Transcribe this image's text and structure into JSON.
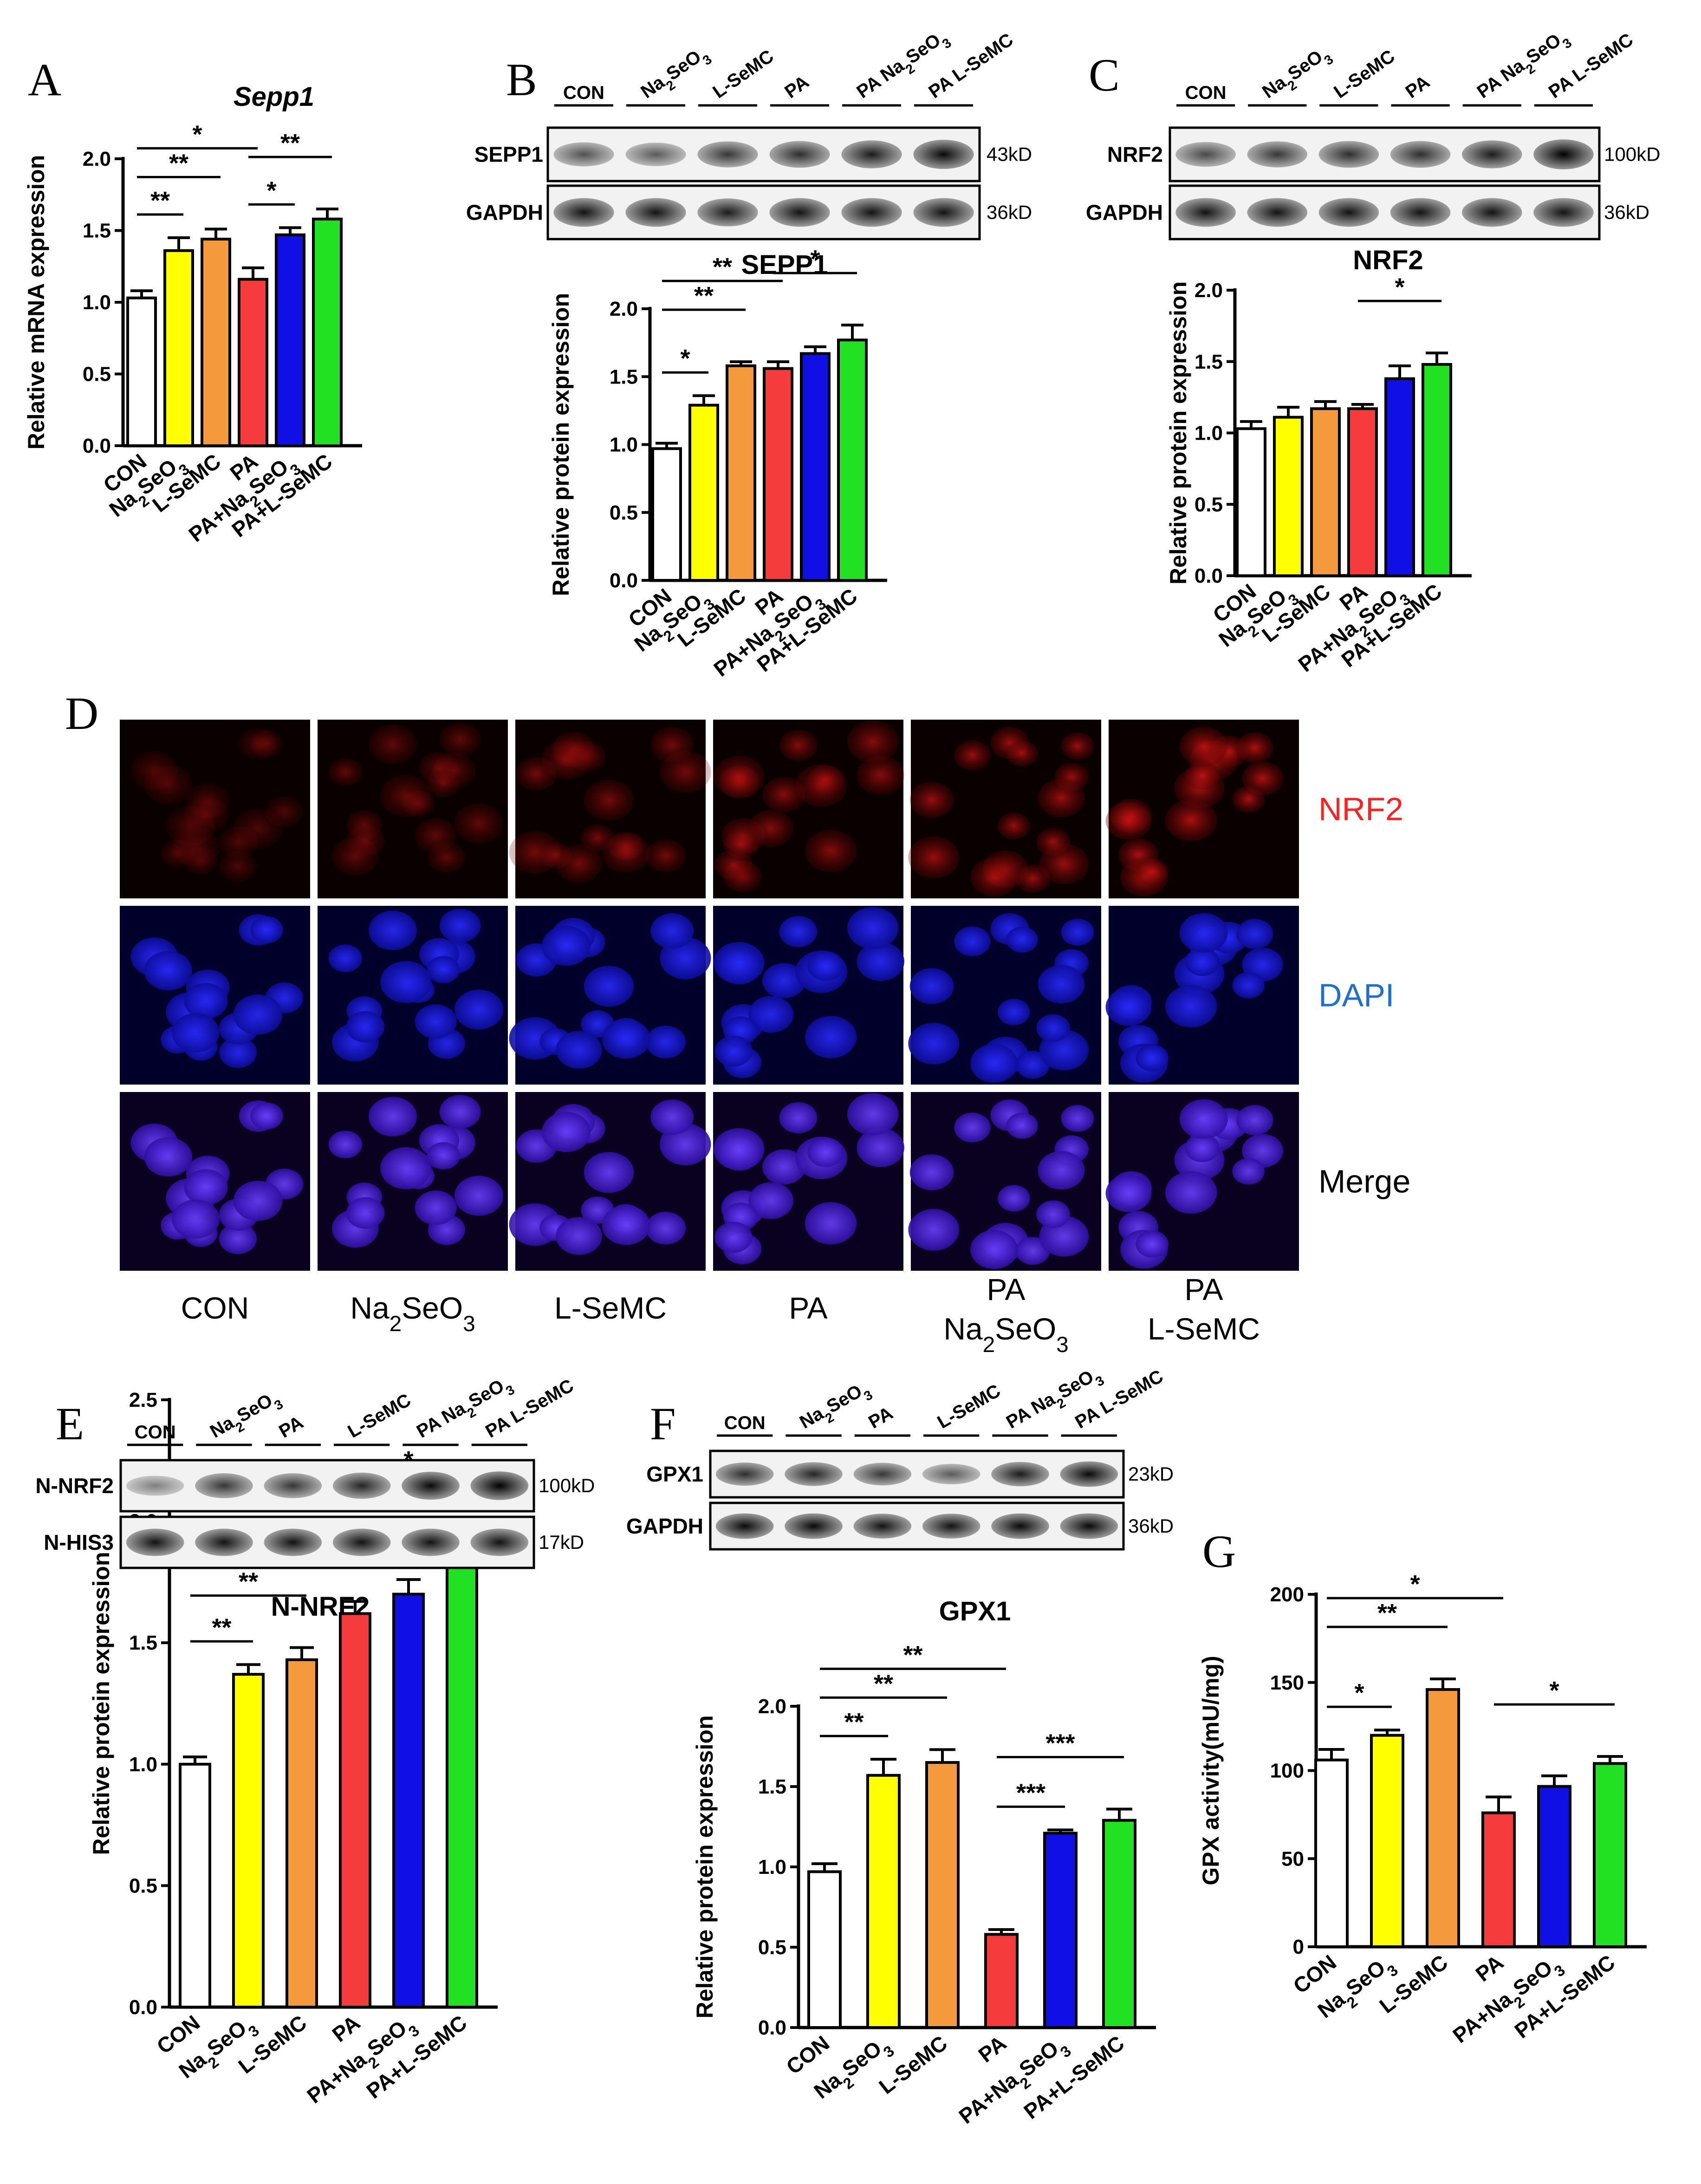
{
  "colors": {
    "con": "#ffffff",
    "na2seo3": "#ffff00",
    "lsemc": "#f59a3c",
    "pa": "#f53b3b",
    "pa_na2seo3": "#1010e6",
    "pa_lsemc": "#22e022",
    "nrf2_channel": "#ff2020",
    "dapi_channel": "#1f6fd0"
  },
  "panel_letters": [
    "A",
    "B",
    "C",
    "D",
    "E",
    "F",
    "G"
  ],
  "groups": [
    "CON",
    "Na2SeO3",
    "L-SeMC",
    "PA",
    "PA+Na2SeO3",
    "PA+L-SeMC"
  ],
  "chart_data": [
    {
      "panel": "A",
      "type": "bar",
      "title": "Sepp1",
      "ylabel": "Relative mRNA expression",
      "categories": [
        "CON",
        "Na2SeO3",
        "L-SeMC",
        "PA",
        "PA+Na2SeO3",
        "PA+L-SeMC"
      ],
      "values": [
        1.03,
        1.36,
        1.44,
        1.16,
        1.47,
        1.58
      ],
      "errors": [
        0.05,
        0.09,
        0.07,
        0.08,
        0.05,
        0.07
      ],
      "ylim": [
        0,
        2.0
      ],
      "yticks": [
        0.0,
        0.5,
        1.0,
        1.5,
        2.0
      ],
      "ytick_labels": [
        "0.0",
        "0.5",
        "1.0",
        "1.5",
        "2.0"
      ],
      "significance": [
        {
          "from": 0,
          "to": 1,
          "label": "**"
        },
        {
          "from": 0,
          "to": 2,
          "label": "**"
        },
        {
          "from": 0,
          "to": 3,
          "label": "*"
        },
        {
          "from": 3,
          "to": 4,
          "label": "*"
        },
        {
          "from": 3,
          "to": 5,
          "label": "**"
        }
      ]
    },
    {
      "panel": "B",
      "type": "bar",
      "title": "SEPP1",
      "ylabel": "Relative protein expression",
      "categories": [
        "CON",
        "Na2SeO3",
        "L-SeMC",
        "PA",
        "PA+Na2SeO3",
        "PA+L-SeMC"
      ],
      "values": [
        0.97,
        1.29,
        1.58,
        1.56,
        1.67,
        1.77
      ],
      "errors": [
        0.04,
        0.07,
        0.03,
        0.05,
        0.05,
        0.11
      ],
      "ylim": [
        0,
        2.0
      ],
      "yticks": [
        0.0,
        0.5,
        1.0,
        1.5,
        2.0
      ],
      "ytick_labels": [
        "0.0",
        "0.5",
        "1.0",
        "1.5",
        "2.0"
      ],
      "significance": [
        {
          "from": 0,
          "to": 1,
          "label": "*"
        },
        {
          "from": 0,
          "to": 2,
          "label": "**"
        },
        {
          "from": 0,
          "to": 3,
          "label": "**"
        },
        {
          "from": 3,
          "to": 5,
          "label": "*"
        }
      ]
    },
    {
      "panel": "C",
      "type": "bar",
      "title": "NRF2",
      "ylabel": "Relative protein expression",
      "categories": [
        "CON",
        "Na2SeO3",
        "L-SeMC",
        "PA",
        "PA+Na2SeO3",
        "PA+L-SeMC"
      ],
      "values": [
        1.03,
        1.11,
        1.17,
        1.17,
        1.38,
        1.48
      ],
      "errors": [
        0.05,
        0.07,
        0.05,
        0.03,
        0.09,
        0.08
      ],
      "ylim": [
        0,
        2.0
      ],
      "yticks": [
        0.0,
        0.5,
        1.0,
        1.5,
        2.0
      ],
      "ytick_labels": [
        "0.0",
        "0.5",
        "1.0",
        "1.5",
        "2.0"
      ],
      "significance": [
        {
          "from": 3,
          "to": 5,
          "label": "*"
        }
      ]
    },
    {
      "panel": "E",
      "type": "bar",
      "title": "N-NRF2",
      "ylabel": "Relative protein expression",
      "categories": [
        "CON",
        "Na2SeO3",
        "L-SeMC",
        "PA",
        "PA+Na2SeO3",
        "PA+L-SeMC"
      ],
      "values": [
        1.0,
        1.37,
        1.43,
        1.62,
        1.7,
        1.92
      ],
      "errors": [
        0.03,
        0.04,
        0.05,
        0.05,
        0.06,
        0.06
      ],
      "ylim": [
        0,
        2.5
      ],
      "yticks": [
        0.0,
        0.5,
        1.0,
        1.5,
        2.0,
        2.5
      ],
      "ytick_labels": [
        "0.0",
        "0.5",
        "1.0",
        "1.5",
        "2.0",
        "2.5"
      ],
      "significance": [
        {
          "from": 0,
          "to": 1,
          "label": "**"
        },
        {
          "from": 0,
          "to": 2,
          "label": "**"
        },
        {
          "from": 0,
          "to": 3,
          "label": "***"
        },
        {
          "from": 3,
          "to": 5,
          "label": "*"
        }
      ]
    },
    {
      "panel": "F",
      "type": "bar",
      "title": "GPX1",
      "ylabel": "Relative protein expression",
      "categories": [
        "CON",
        "Na2SeO3",
        "L-SeMC",
        "PA",
        "PA+Na2SeO3",
        "PA+L-SeMC"
      ],
      "values": [
        0.97,
        1.57,
        1.65,
        0.58,
        1.21,
        1.29
      ],
      "errors": [
        0.05,
        0.1,
        0.08,
        0.03,
        0.02,
        0.07
      ],
      "ylim": [
        0,
        2.0
      ],
      "yticks": [
        0.0,
        0.5,
        1.0,
        1.5,
        2.0
      ],
      "ytick_labels": [
        "0.0",
        "0.5",
        "1.0",
        "1.5",
        "2.0"
      ],
      "significance": [
        {
          "from": 0,
          "to": 1,
          "label": "**"
        },
        {
          "from": 0,
          "to": 2,
          "label": "**"
        },
        {
          "from": 0,
          "to": 3,
          "label": "**"
        },
        {
          "from": 3,
          "to": 4,
          "label": "***"
        },
        {
          "from": 3,
          "to": 5,
          "label": "***"
        }
      ]
    },
    {
      "panel": "G",
      "type": "bar",
      "title": "",
      "ylabel": "GPX activity(mU/mg)",
      "categories": [
        "CON",
        "Na2SeO3",
        "L-SeMC",
        "PA",
        "PA+Na2SeO3",
        "PA+L-SeMC"
      ],
      "values": [
        106,
        120,
        146,
        76,
        91,
        104
      ],
      "errors": [
        6,
        3,
        6,
        9,
        6,
        4
      ],
      "ylim": [
        0,
        200
      ],
      "yticks": [
        0,
        50,
        100,
        150,
        200
      ],
      "ytick_labels": [
        "0",
        "50",
        "100",
        "150",
        "200"
      ],
      "significance": [
        {
          "from": 0,
          "to": 1,
          "label": "*"
        },
        {
          "from": 0,
          "to": 2,
          "label": "**"
        },
        {
          "from": 0,
          "to": 3,
          "label": "*"
        },
        {
          "from": 3,
          "to": 5,
          "label": "*"
        }
      ]
    }
  ],
  "blots": {
    "B": {
      "lanes": [
        "CON",
        "Na2SeO3",
        "L-SeMC",
        "PA",
        "PA Na2SeO3",
        "PA L-SeMC"
      ],
      "rows": [
        {
          "name": "SEPP1",
          "kd": "43kD",
          "intensity": [
            0.55,
            0.5,
            0.7,
            0.75,
            0.85,
            0.95
          ]
        },
        {
          "name": "GAPDH",
          "kd": "36kD",
          "intensity": [
            0.9,
            0.9,
            0.85,
            0.9,
            0.9,
            0.9
          ]
        }
      ]
    },
    "C": {
      "lanes": [
        "CON",
        "Na2SeO3",
        "L-SeMC",
        "PA",
        "PA Na2SeO3",
        "PA L-SeMC"
      ],
      "rows": [
        {
          "name": "NRF2",
          "kd": "100kD",
          "intensity": [
            0.6,
            0.7,
            0.75,
            0.75,
            0.85,
            1.0
          ]
        },
        {
          "name": "GAPDH",
          "kd": "36kD",
          "intensity": [
            0.9,
            0.9,
            0.9,
            0.9,
            0.9,
            0.9
          ]
        }
      ]
    },
    "E": {
      "lanes": [
        "CON",
        "Na2SeO3",
        "PA",
        "L-SeMC",
        "PA Na2SeO3",
        "PA L-SeMC"
      ],
      "rows": [
        {
          "name": "N-NRF2",
          "kd": "100kD",
          "intensity": [
            0.3,
            0.7,
            0.7,
            0.8,
            0.95,
            1.0
          ]
        },
        {
          "name": "N-HIS3",
          "kd": "17kD",
          "intensity": [
            0.9,
            0.9,
            0.9,
            0.9,
            0.9,
            0.9
          ]
        }
      ]
    },
    "F": {
      "lanes": [
        "CON",
        "Na2SeO3",
        "PA",
        "L-SeMC",
        "PA Na2SeO3",
        "PA L-SeMC"
      ],
      "rows": [
        {
          "name": "GPX1",
          "kd": "23kD",
          "intensity": [
            0.75,
            0.8,
            0.7,
            0.5,
            0.85,
            0.95
          ]
        },
        {
          "name": "GAPDH",
          "kd": "36kD",
          "intensity": [
            0.95,
            0.95,
            0.9,
            0.9,
            0.95,
            0.95
          ]
        }
      ]
    }
  },
  "microscopy": {
    "row_labels": [
      "NRF2",
      "DAPI",
      "Merge"
    ],
    "column_labels": [
      "CON",
      "Na2SeO3",
      "L-SeMC",
      "PA",
      "PA Na2SeO3",
      "PA L-SeMC"
    ]
  }
}
